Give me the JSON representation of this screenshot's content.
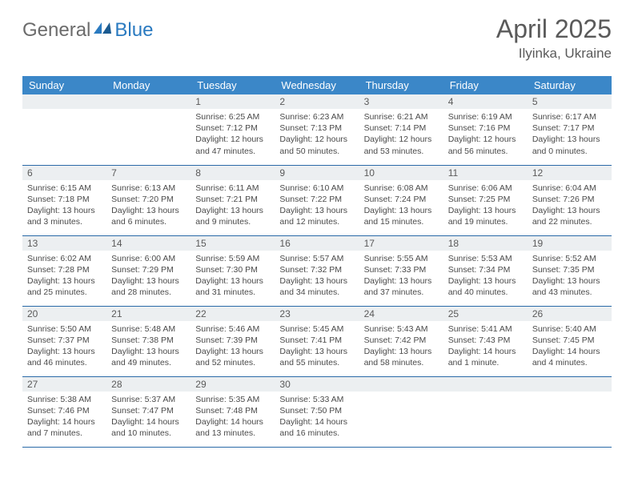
{
  "logo": {
    "text1": "General",
    "text2": "Blue"
  },
  "title": "April 2025",
  "location": "Ilyinka, Ukraine",
  "colors": {
    "header_bg": "#3b87c8",
    "header_text": "#ffffff",
    "daynum_bg": "#eceff1",
    "border": "#2a6aa8",
    "text": "#4a4a4a",
    "title_text": "#5a5a5a",
    "logo_gray": "#6b6b6b",
    "logo_blue": "#2a7ac0"
  },
  "weekdays": [
    "Sunday",
    "Monday",
    "Tuesday",
    "Wednesday",
    "Thursday",
    "Friday",
    "Saturday"
  ],
  "weeks": [
    [
      null,
      null,
      {
        "n": "1",
        "sr": "6:25 AM",
        "ss": "7:12 PM",
        "dl": "12 hours and 47 minutes."
      },
      {
        "n": "2",
        "sr": "6:23 AM",
        "ss": "7:13 PM",
        "dl": "12 hours and 50 minutes."
      },
      {
        "n": "3",
        "sr": "6:21 AM",
        "ss": "7:14 PM",
        "dl": "12 hours and 53 minutes."
      },
      {
        "n": "4",
        "sr": "6:19 AM",
        "ss": "7:16 PM",
        "dl": "12 hours and 56 minutes."
      },
      {
        "n": "5",
        "sr": "6:17 AM",
        "ss": "7:17 PM",
        "dl": "13 hours and 0 minutes."
      }
    ],
    [
      {
        "n": "6",
        "sr": "6:15 AM",
        "ss": "7:18 PM",
        "dl": "13 hours and 3 minutes."
      },
      {
        "n": "7",
        "sr": "6:13 AM",
        "ss": "7:20 PM",
        "dl": "13 hours and 6 minutes."
      },
      {
        "n": "8",
        "sr": "6:11 AM",
        "ss": "7:21 PM",
        "dl": "13 hours and 9 minutes."
      },
      {
        "n": "9",
        "sr": "6:10 AM",
        "ss": "7:22 PM",
        "dl": "13 hours and 12 minutes."
      },
      {
        "n": "10",
        "sr": "6:08 AM",
        "ss": "7:24 PM",
        "dl": "13 hours and 15 minutes."
      },
      {
        "n": "11",
        "sr": "6:06 AM",
        "ss": "7:25 PM",
        "dl": "13 hours and 19 minutes."
      },
      {
        "n": "12",
        "sr": "6:04 AM",
        "ss": "7:26 PM",
        "dl": "13 hours and 22 minutes."
      }
    ],
    [
      {
        "n": "13",
        "sr": "6:02 AM",
        "ss": "7:28 PM",
        "dl": "13 hours and 25 minutes."
      },
      {
        "n": "14",
        "sr": "6:00 AM",
        "ss": "7:29 PM",
        "dl": "13 hours and 28 minutes."
      },
      {
        "n": "15",
        "sr": "5:59 AM",
        "ss": "7:30 PM",
        "dl": "13 hours and 31 minutes."
      },
      {
        "n": "16",
        "sr": "5:57 AM",
        "ss": "7:32 PM",
        "dl": "13 hours and 34 minutes."
      },
      {
        "n": "17",
        "sr": "5:55 AM",
        "ss": "7:33 PM",
        "dl": "13 hours and 37 minutes."
      },
      {
        "n": "18",
        "sr": "5:53 AM",
        "ss": "7:34 PM",
        "dl": "13 hours and 40 minutes."
      },
      {
        "n": "19",
        "sr": "5:52 AM",
        "ss": "7:35 PM",
        "dl": "13 hours and 43 minutes."
      }
    ],
    [
      {
        "n": "20",
        "sr": "5:50 AM",
        "ss": "7:37 PM",
        "dl": "13 hours and 46 minutes."
      },
      {
        "n": "21",
        "sr": "5:48 AM",
        "ss": "7:38 PM",
        "dl": "13 hours and 49 minutes."
      },
      {
        "n": "22",
        "sr": "5:46 AM",
        "ss": "7:39 PM",
        "dl": "13 hours and 52 minutes."
      },
      {
        "n": "23",
        "sr": "5:45 AM",
        "ss": "7:41 PM",
        "dl": "13 hours and 55 minutes."
      },
      {
        "n": "24",
        "sr": "5:43 AM",
        "ss": "7:42 PM",
        "dl": "13 hours and 58 minutes."
      },
      {
        "n": "25",
        "sr": "5:41 AM",
        "ss": "7:43 PM",
        "dl": "14 hours and 1 minute."
      },
      {
        "n": "26",
        "sr": "5:40 AM",
        "ss": "7:45 PM",
        "dl": "14 hours and 4 minutes."
      }
    ],
    [
      {
        "n": "27",
        "sr": "5:38 AM",
        "ss": "7:46 PM",
        "dl": "14 hours and 7 minutes."
      },
      {
        "n": "28",
        "sr": "5:37 AM",
        "ss": "7:47 PM",
        "dl": "14 hours and 10 minutes."
      },
      {
        "n": "29",
        "sr": "5:35 AM",
        "ss": "7:48 PM",
        "dl": "14 hours and 13 minutes."
      },
      {
        "n": "30",
        "sr": "5:33 AM",
        "ss": "7:50 PM",
        "dl": "14 hours and 16 minutes."
      },
      null,
      null,
      null
    ]
  ],
  "labels": {
    "sunrise": "Sunrise:",
    "sunset": "Sunset:",
    "daylight": "Daylight:"
  }
}
